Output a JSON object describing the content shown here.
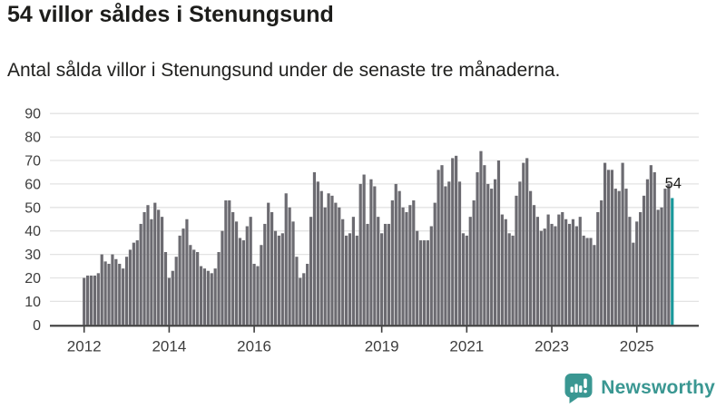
{
  "header": {
    "title": "54 villor såldes i Stenungsund",
    "subtitle": "Antal sålda villor i Stenungsund under de senaste tre månaderna."
  },
  "chart_data": {
    "type": "bar",
    "title": "54 villor såldes i Stenungsund",
    "subtitle": "Antal sålda villor i Stenungsund under de senaste tre månaderna.",
    "x_start": "2012-01",
    "x_end": "2025-11",
    "x_tick_labels": [
      "2012",
      "2014",
      "2016",
      "2019",
      "2021",
      "2023",
      "2025"
    ],
    "x_tick_years": [
      2012,
      2014,
      2016,
      2019,
      2021,
      2023,
      2025
    ],
    "y_ticks": [
      0,
      10,
      20,
      30,
      40,
      50,
      60,
      70,
      80,
      90
    ],
    "ylim": [
      0,
      90
    ],
    "grid": true,
    "legend": false,
    "last_value_label": "54",
    "highlight_last": true,
    "values": [
      20,
      21,
      21,
      21,
      22,
      30,
      27,
      26,
      30,
      28,
      26,
      24,
      29,
      32,
      35,
      36,
      43,
      48,
      51,
      45,
      52,
      49,
      46,
      31,
      20,
      23,
      29,
      38,
      41,
      45,
      34,
      32,
      31,
      25,
      24,
      23,
      22,
      24,
      31,
      40,
      53,
      53,
      48,
      44,
      37,
      36,
      42,
      46,
      26,
      25,
      34,
      43,
      52,
      48,
      40,
      38,
      39,
      56,
      50,
      44,
      29,
      20,
      22,
      26,
      46,
      65,
      61,
      57,
      50,
      56,
      55,
      52,
      50,
      45,
      38,
      39,
      46,
      38,
      60,
      64,
      43,
      62,
      59,
      46,
      39,
      43,
      43,
      53,
      60,
      57,
      50,
      48,
      51,
      53,
      40,
      36,
      36,
      36,
      42,
      52,
      66,
      68,
      59,
      61,
      71,
      72,
      61,
      39,
      38,
      46,
      53,
      65,
      74,
      68,
      60,
      58,
      62,
      70,
      47,
      45,
      39,
      38,
      55,
      61,
      69,
      71,
      57,
      51,
      46,
      40,
      41,
      47,
      43,
      42,
      47,
      48,
      45,
      43,
      45,
      42,
      46,
      38,
      37,
      37,
      34,
      48,
      53,
      69,
      66,
      66,
      58,
      57,
      69,
      58,
      46,
      35,
      44,
      48,
      55,
      62,
      68,
      65,
      49,
      50,
      58,
      60,
      54
    ]
  },
  "colors": {
    "bar": "#6c6b71",
    "highlight": "#19989b",
    "grid": "#e3e3e3",
    "axis": "#3c3c3c",
    "tick_text": "#3d3d3d",
    "annotation_text": "#1d1d1b",
    "brand": "#3a9792"
  },
  "footer": {
    "brand": "Newsworthy"
  }
}
